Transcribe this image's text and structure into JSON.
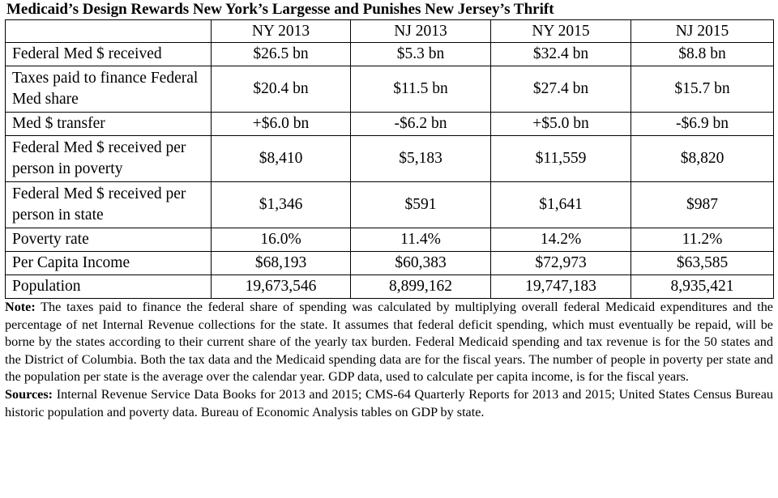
{
  "title": "Medicaid’s Design Rewards New York’s Largesse and Punishes New Jersey’s Thrift",
  "table": {
    "columns": [
      "",
      "NY 2013",
      "NJ 2013",
      "NY 2015",
      "NJ 2015"
    ],
    "rows": [
      {
        "label": "Federal Med $ received",
        "values": [
          "$26.5 bn",
          "$5.3 bn",
          "$32.4 bn",
          "$8.8 bn"
        ]
      },
      {
        "label": "Taxes paid to finance Federal Med share",
        "values": [
          "$20.4 bn",
          "$11.5 bn",
          "$27.4 bn",
          "$15.7 bn"
        ]
      },
      {
        "label": "Med $ transfer",
        "values": [
          "+$6.0 bn",
          "-$6.2 bn",
          "+$5.0 bn",
          "-$6.9 bn"
        ]
      },
      {
        "label": "Federal Med $ received per person in poverty",
        "values": [
          "$8,410",
          "$5,183",
          "$11,559",
          "$8,820"
        ]
      },
      {
        "label": "Federal Med $ received per person in state",
        "values": [
          "$1,346",
          "$591",
          "$1,641",
          "$987"
        ]
      },
      {
        "label": "Poverty rate",
        "values": [
          "16.0%",
          "11.4%",
          "14.2%",
          "11.2%"
        ]
      },
      {
        "label": "Per Capita Income",
        "values": [
          "$68,193",
          "$60,383",
          "$72,973",
          "$63,585"
        ]
      },
      {
        "label": "Population",
        "values": [
          "19,673,546",
          "8,899,162",
          "19,747,183",
          "8,935,421"
        ]
      }
    ]
  },
  "note": {
    "heading": "Note:",
    "text": " The taxes paid to finance the federal share of spending was calculated by multiplying overall federal Medicaid expenditures and the percentage of net Internal Revenue collections for the state. It assumes that federal deficit spending, which must eventually be repaid, will be borne by the states according to their current share of the yearly tax burden. Federal Medicaid spending and tax revenue is for the 50 states and the District of Columbia. Both the tax data and the Medicaid spending data are for the fiscal years. The number of people in poverty per state and the population per state is the average over the calendar year. GDP data, used to calculate per capita income, is for the fiscal years."
  },
  "sources": {
    "heading": "Sources:",
    "text": " Internal Revenue Service Data Books for 2013 and 2015; CMS-64 Quarterly Reports for 2013 and 2015; United States Census Bureau historic population and poverty data. Bureau of Economic Analysis tables on GDP by state."
  }
}
